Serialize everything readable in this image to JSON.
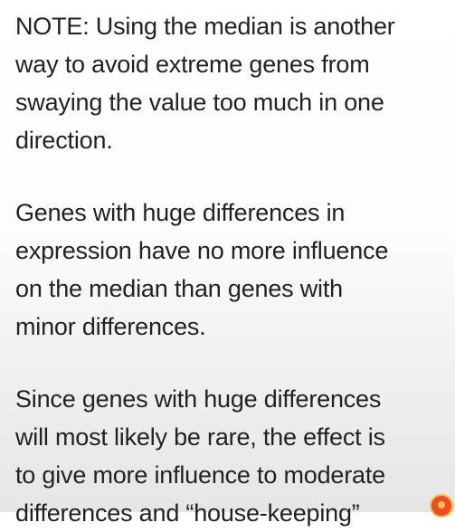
{
  "slide": {
    "paragraphs": [
      {
        "lines": [
          "NOTE: Using the median is another",
          "way to avoid extreme genes from",
          "swaying the value too much in one",
          "direction."
        ]
      },
      {
        "lines": [
          "Genes with huge differences in",
          "expression have no more influence",
          "on the median than genes with",
          "minor differences."
        ]
      },
      {
        "lines": [
          "Since genes with huge differences",
          "will most likely be rare, the effect is",
          "to give more influence to moderate",
          "differences and “house-keeping”"
        ]
      }
    ],
    "logo": {
      "icon": "channel-logo-icon",
      "color": "#e94b2c"
    }
  }
}
